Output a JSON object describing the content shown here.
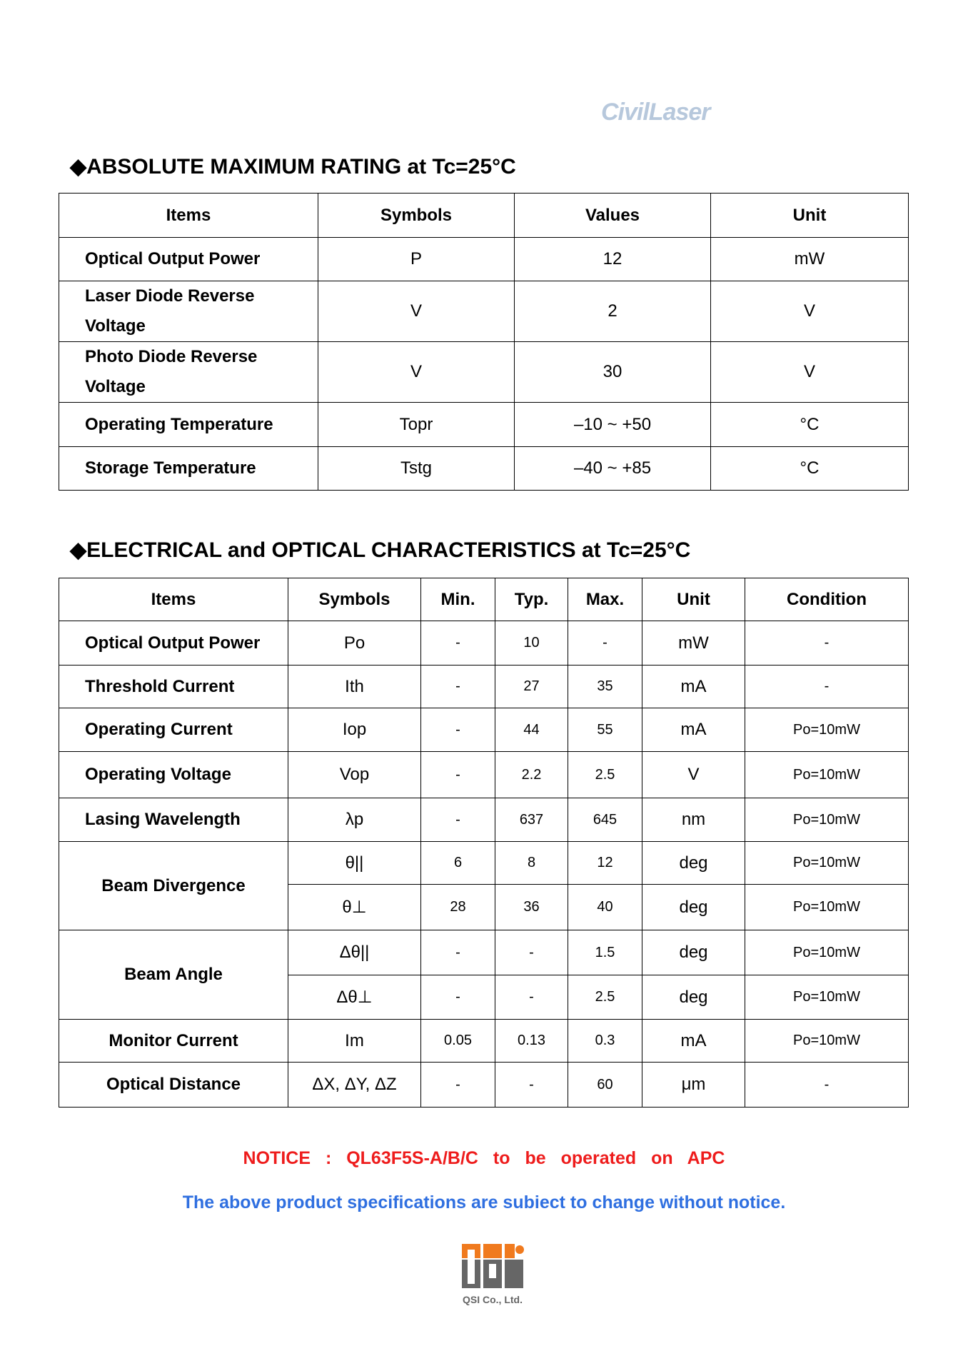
{
  "header": {
    "logo_text": "CivilLaser"
  },
  "abs_max": {
    "title": "ABSOLUTE MAXIMUM RATING at Tc=25°C",
    "bullet": "◆",
    "columns": [
      "Items",
      "Symbols",
      "Values",
      "Unit"
    ],
    "rows": [
      [
        "Optical Output Power",
        "P",
        "12",
        "mW"
      ],
      [
        "Laser Diode Reverse Voltage",
        "V",
        "2",
        "V"
      ],
      [
        "Photo Diode Reverse Voltage",
        "V",
        "30",
        "V"
      ],
      [
        "Operating Temperature",
        "Topr",
        "–10 ~ +50",
        "°C"
      ],
      [
        "Storage Temperature",
        "Tstg",
        "–40 ~ +85",
        "°C"
      ]
    ]
  },
  "eo": {
    "title": "ELECTRICAL and OPTICAL CHARACTERISTICS at Tc=25°C",
    "bullet": "◆",
    "columns": [
      "Items",
      "Symbols",
      "Min.",
      "Typ.",
      "Max.",
      "Unit",
      "Condition"
    ],
    "rows": [
      [
        "Optical Output Power",
        "Po",
        "-",
        "10",
        "-",
        "mW",
        "-"
      ],
      [
        "Threshold Current",
        "Ith",
        "-",
        "27",
        "35",
        "mA",
        "-"
      ],
      [
        "Operating Current",
        "Iop",
        "-",
        "44",
        "55",
        "mA",
        "Po=10mW"
      ],
      [
        "Operating Voltage",
        "Vop",
        "-",
        "2.2",
        "2.5",
        "V",
        "Po=10mW"
      ],
      [
        "Lasing Wavelength",
        "λp",
        "-",
        "637",
        "645",
        "nm",
        "Po=10mW"
      ]
    ],
    "beam_divergence": {
      "label": "Beam Divergence",
      "rows": [
        [
          "θ||",
          "6",
          "8",
          "12",
          "deg",
          "Po=10mW"
        ],
        [
          "θ⊥",
          "28",
          "36",
          "40",
          "deg",
          "Po=10mW"
        ]
      ]
    },
    "beam_angle": {
      "label": "Beam Angle",
      "rows": [
        [
          "Δθ||",
          "-",
          "-",
          "1.5",
          "deg",
          "Po=10mW"
        ],
        [
          "Δθ⊥",
          "-",
          "-",
          "2.5",
          "deg",
          "Po=10mW"
        ]
      ]
    },
    "tail": [
      [
        "Monitor Current",
        "Im",
        "0.05",
        "0.13",
        "0.3",
        "mA",
        "Po=10mW"
      ],
      [
        "Optical Distance",
        "ΔX, ΔY, ΔZ",
        "-",
        "-",
        "60",
        "μm",
        "-"
      ]
    ]
  },
  "notice": "NOTICE : QL63F5S-A/B/C to be operated on APC",
  "disclaimer": "The above product specifications are subiect to change without notice.",
  "footer": {
    "logo_text": "QSI",
    "company": "QSI Co., Ltd."
  },
  "colors": {
    "notice": "#ee1c1c",
    "disclaimer": "#2f6fe0",
    "qsi_orange": "#f07a1e",
    "qsi_gray": "#666666",
    "logo_blue": "#b7c8dc"
  }
}
